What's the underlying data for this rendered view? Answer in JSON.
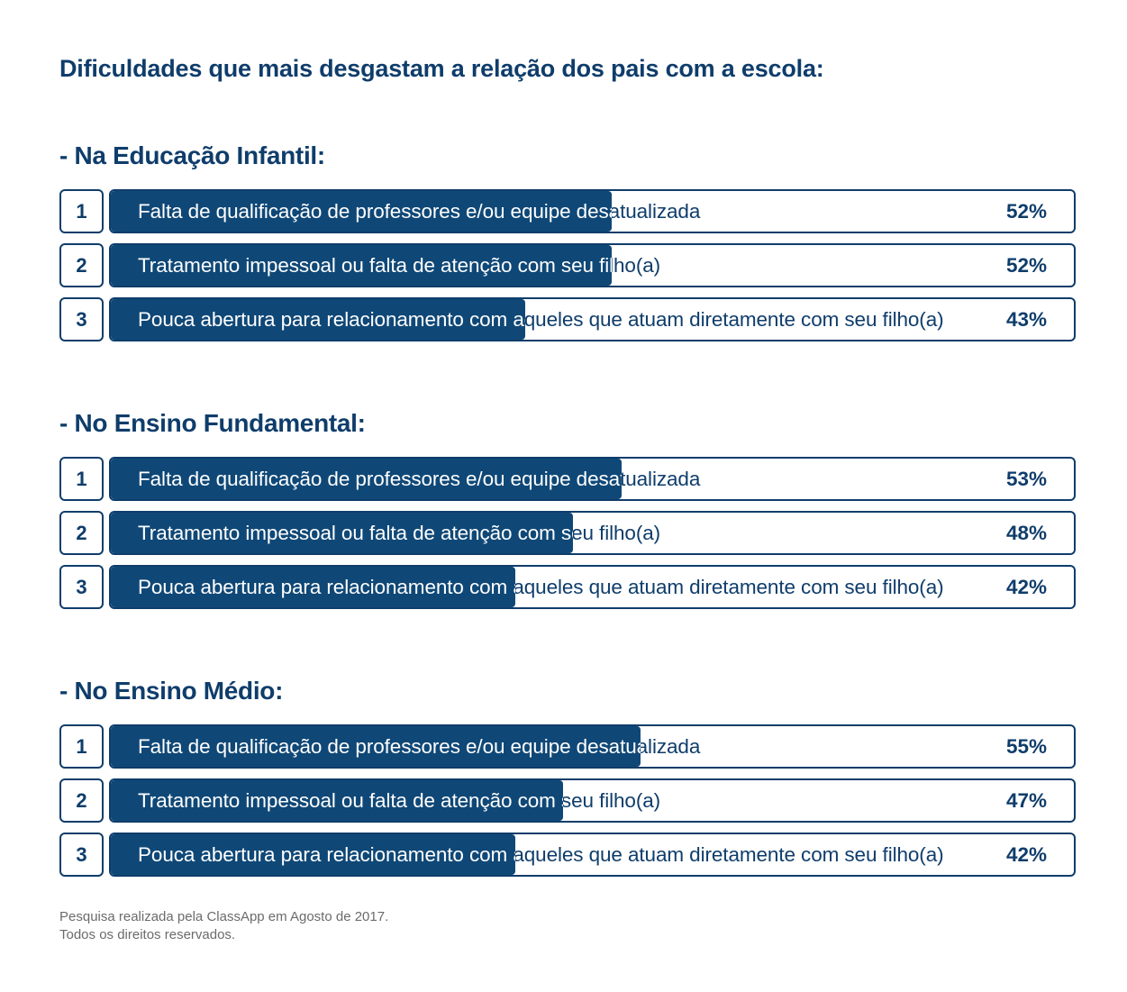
{
  "title": "Dificuldades que mais desgastam a relação dos pais com a escola:",
  "chart_data": [
    {
      "type": "bar",
      "title": "- Na Educação Infantil:",
      "categories": [
        "Falta de qualificação de professores e/ou equipe desatualizada",
        "Tratamento impessoal ou falta de atenção com seu filho(a)",
        "Pouca abertura para relacionamento com aqueles que atuam diretamente com seu filho(a)"
      ],
      "ranks": [
        "1",
        "2",
        "3"
      ],
      "values": [
        52,
        52,
        43
      ],
      "value_labels": [
        "52%",
        "52%",
        "43%"
      ],
      "ylim": [
        0,
        100
      ]
    },
    {
      "type": "bar",
      "title": "- No Ensino Fundamental:",
      "categories": [
        "Falta de qualificação de professores e/ou equipe desatualizada",
        "Tratamento impessoal ou falta de atenção com seu filho(a)",
        "Pouca abertura para relacionamento com aqueles que atuam diretamente com seu filho(a)"
      ],
      "ranks": [
        "1",
        "2",
        "3"
      ],
      "values": [
        53,
        48,
        42
      ],
      "value_labels": [
        "53%",
        "48%",
        "42%"
      ],
      "ylim": [
        0,
        100
      ]
    },
    {
      "type": "bar",
      "title": "- No Ensino Médio:",
      "categories": [
        "Falta de qualificação de professores e/ou equipe desatualizada",
        "Tratamento impessoal ou falta de atenção com seu filho(a)",
        "Pouca abertura para relacionamento com aqueles que atuam diretamente com seu filho(a)"
      ],
      "ranks": [
        "1",
        "2",
        "3"
      ],
      "values": [
        55,
        47,
        42
      ],
      "value_labels": [
        "55%",
        "47%",
        "42%"
      ],
      "ylim": [
        0,
        100
      ]
    }
  ],
  "footer": {
    "line1": "Pesquisa realizada pela ClassApp em Agosto de 2017.",
    "line2": "Todos os direitos reservados."
  },
  "colors": {
    "primary": "#0f3d6b",
    "bar_fill": "#0f4877",
    "footer_text": "#6b6b6b"
  }
}
